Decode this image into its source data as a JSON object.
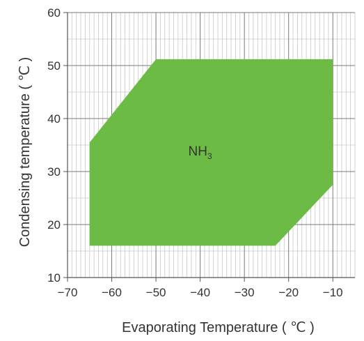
{
  "chart_data": {
    "type": "area",
    "xlabel": "Evaporating Temperature ( ℃ )",
    "ylabel": "Condensing temperature ( ℃ )",
    "xlim": [
      -70,
      -5
    ],
    "ylim": [
      10,
      60
    ],
    "x_ticks": [
      -70,
      -60,
      -50,
      -40,
      -30,
      -20,
      -10
    ],
    "y_ticks": [
      10,
      20,
      30,
      40,
      50,
      60
    ],
    "x_minor_step": 1,
    "y_minor_step": 5,
    "grid": true,
    "region": {
      "label_main": "NH",
      "label_sub": "3",
      "color": "#6cbb45",
      "label_at": {
        "x": -40,
        "y": 33
      },
      "polygon": [
        {
          "x": -65,
          "y": 16
        },
        {
          "x": -65,
          "y": 35.5
        },
        {
          "x": -50,
          "y": 51.2
        },
        {
          "x": -10,
          "y": 51.2
        },
        {
          "x": -10,
          "y": 27.5
        },
        {
          "x": -23,
          "y": 16
        }
      ]
    }
  }
}
